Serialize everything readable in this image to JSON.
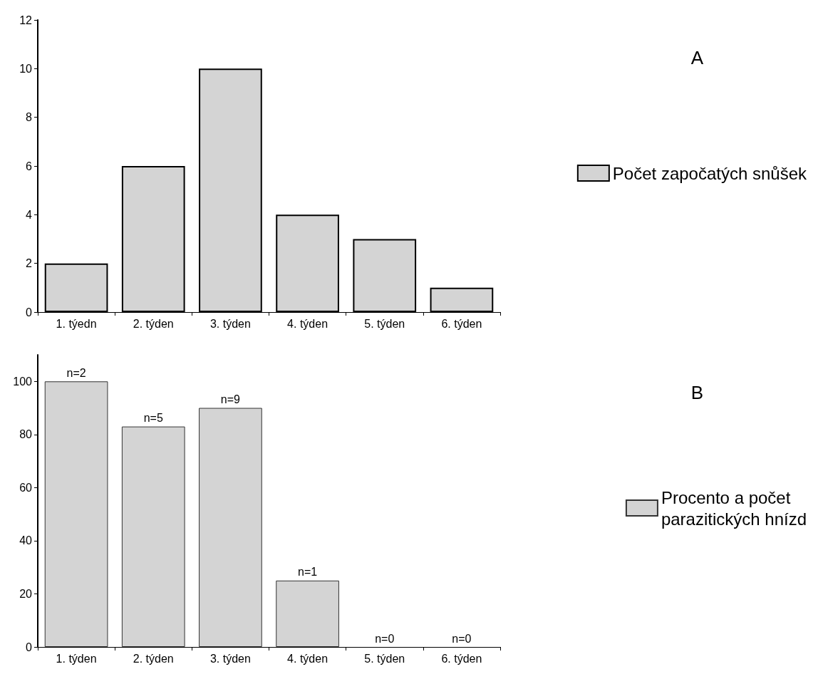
{
  "chart_data": [
    {
      "type": "bar",
      "categories": [
        "1. týedn",
        "2. týden",
        "3. týden",
        "4. týden",
        "5. týden",
        "6. týden"
      ],
      "series": [
        {
          "name": "Počet započatých snůšek",
          "color": "#d4d4d4",
          "values": [
            2,
            6,
            10,
            4,
            3,
            1
          ]
        }
      ],
      "ylim": [
        0,
        12
      ],
      "yticks": [
        0,
        2,
        4,
        6,
        8,
        10,
        12
      ],
      "grid": false,
      "legend": "right",
      "annotations": [
        "A"
      ]
    },
    {
      "type": "bar",
      "categories": [
        "1. týden",
        "2. týden",
        "3. týden",
        "4. týden",
        "5. týden",
        "6. týden"
      ],
      "series": [
        {
          "name": "Procento a počet\nparazitických hnízd",
          "color": "#d4d4d4",
          "values": [
            100,
            83,
            90,
            25,
            0,
            0
          ]
        }
      ],
      "ylim": [
        0,
        110
      ],
      "yticks": [
        0,
        20,
        40,
        60,
        80,
        100
      ],
      "grid": false,
      "legend": "right",
      "annotations": [
        "B",
        {
          "text": "n=2",
          "x": "1. týden",
          "y": 100
        },
        {
          "text": "n=5",
          "x": "2. týden",
          "y": 83
        },
        {
          "text": "n=9",
          "x": "3. týden",
          "y": 90
        },
        {
          "text": "n=1",
          "x": "4. týden",
          "y": 25
        },
        {
          "text": "n=0",
          "x": "5. týden",
          "y": 0
        },
        {
          "text": "n=0",
          "x": "6. týden",
          "y": 0
        }
      ]
    }
  ]
}
